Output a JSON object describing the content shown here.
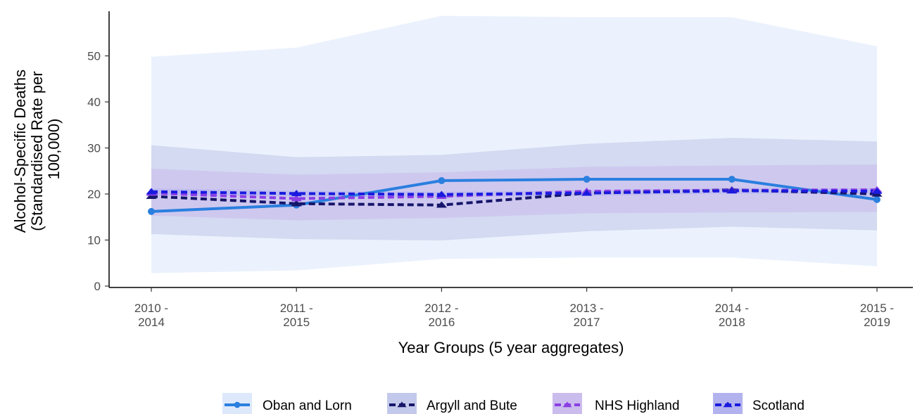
{
  "chart_data": {
    "type": "line",
    "title": "",
    "xlabel": "Year Groups (5 year aggregates)",
    "ylabel_lines": [
      "Alcohol-Specific Deaths",
      "(Standardised Rate per",
      "100,000)"
    ],
    "categories": [
      [
        "2010 -",
        "2014"
      ],
      [
        "2011 -",
        "2015"
      ],
      [
        "2012 -",
        "2016"
      ],
      [
        "2013 -",
        "2017"
      ],
      [
        "2014 -",
        "2018"
      ],
      [
        "2015 -",
        "2019"
      ]
    ],
    "ylim": [
      0,
      58
    ],
    "yticks": [
      0,
      10,
      20,
      30,
      40,
      50
    ],
    "grid": false,
    "legend_position": "bottom",
    "series": [
      {
        "name": "Oban and Lorn",
        "values": [
          16.2,
          17.6,
          22.9,
          23.2,
          23.2,
          18.8
        ],
        "ci_lower": [
          2.8,
          3.4,
          5.9,
          6.2,
          6.2,
          4.3
        ],
        "ci_upper": [
          49.8,
          51.8,
          58.7,
          58.4,
          58.4,
          52.1
        ],
        "line_color": "#2a7fdf",
        "band_color": "#dde9fb",
        "dash": "solid",
        "marker": "circle"
      },
      {
        "name": "Argyll and Bute",
        "values": [
          19.5,
          17.9,
          17.6,
          20.2,
          20.9,
          20.0
        ],
        "ci_lower": [
          11.3,
          10.2,
          9.9,
          11.9,
          12.9,
          12.1
        ],
        "ci_upper": [
          30.6,
          28.0,
          28.5,
          30.9,
          32.2,
          31.4
        ],
        "line_color": "#16166b",
        "band_color": "#c3c9ea",
        "dash": "dashed",
        "marker": "triangle"
      },
      {
        "name": "NHS Highland",
        "values": [
          20.2,
          19.0,
          19.5,
          20.6,
          20.8,
          20.9
        ],
        "ci_lower": [
          15.3,
          14.3,
          14.8,
          15.8,
          16.0,
          16.1
        ],
        "ci_upper": [
          25.5,
          24.2,
          24.7,
          25.9,
          26.2,
          26.4
        ],
        "line_color": "#8b3fe4",
        "band_color": "#cbbcee",
        "dash": "dashed",
        "marker": "triangle"
      },
      {
        "name": "Scotland",
        "values": [
          20.5,
          20.1,
          19.9,
          20.2,
          20.7,
          20.6
        ],
        "ci_lower": [
          19.8,
          19.5,
          19.3,
          19.6,
          20.1,
          20.0
        ],
        "ci_upper": [
          21.2,
          20.7,
          20.5,
          20.8,
          21.3,
          21.2
        ],
        "line_color": "#1a1adf",
        "band_color": "#b2b2ee",
        "dash": "dashed",
        "marker": "triangle"
      }
    ]
  }
}
